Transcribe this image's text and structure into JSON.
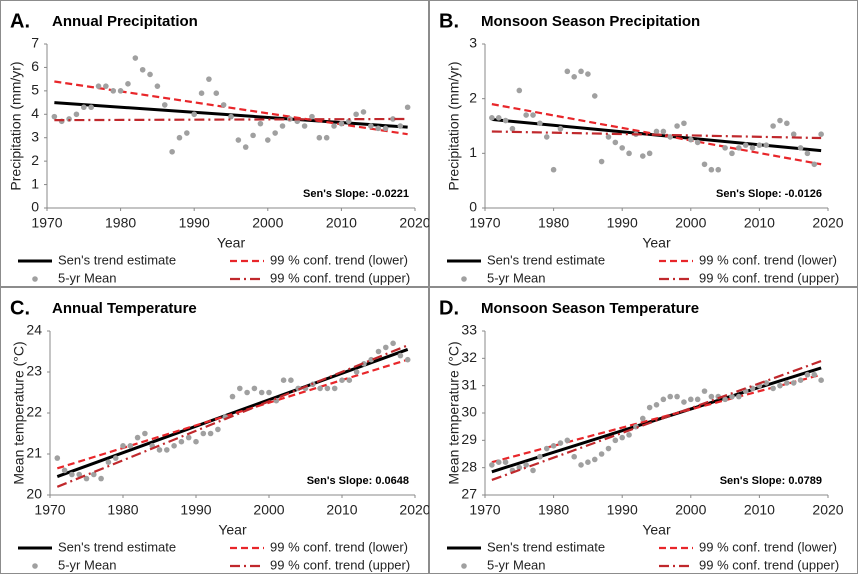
{
  "chart_data": [
    {
      "type": "line",
      "label": "A.",
      "title": "Annual Precipitation",
      "xlabel": "Year",
      "ylabel": "Precipitation (mm/yr)",
      "annotation": "Sen's Slope: -0.0221",
      "xlim": [
        1970,
        2020
      ],
      "xticks": [
        1970,
        1980,
        1990,
        2000,
        2010,
        2020
      ],
      "ylim": [
        0,
        7
      ],
      "yticks": [
        0,
        1,
        2,
        3,
        4,
        5,
        6,
        7
      ],
      "grid": false,
      "series": [
        {
          "name": "Sen's trend estimate",
          "kind": "line",
          "dash": "solid",
          "color": "#000000",
          "x": [
            1971,
            2019
          ],
          "values": [
            4.5,
            3.45
          ]
        },
        {
          "name": "99 % conf. trend (lower)",
          "kind": "line",
          "dash": "dashed",
          "color": "#e8262a",
          "x": [
            1971,
            2019
          ],
          "values": [
            5.4,
            3.15
          ]
        },
        {
          "name": "5-yr Mean",
          "kind": "scatter",
          "color": "#a0a0a0",
          "x": [
            1971,
            1972,
            1973,
            1974,
            1975,
            1976,
            1977,
            1978,
            1979,
            1980,
            1981,
            1982,
            1983,
            1984,
            1985,
            1986,
            1987,
            1988,
            1989,
            1990,
            1991,
            1992,
            1993,
            1994,
            1995,
            1996,
            1997,
            1998,
            1999,
            2000,
            2001,
            2002,
            2003,
            2004,
            2005,
            2006,
            2007,
            2008,
            2009,
            2010,
            2011,
            2012,
            2013,
            2014,
            2015,
            2016,
            2017,
            2018,
            2019
          ],
          "values": [
            3.9,
            3.7,
            3.8,
            4.0,
            4.3,
            4.3,
            5.2,
            5.2,
            5.0,
            5.0,
            5.3,
            6.4,
            5.9,
            5.7,
            5.2,
            4.4,
            2.4,
            3.0,
            3.2,
            4.0,
            4.9,
            5.5,
            4.9,
            4.4,
            3.9,
            2.9,
            2.6,
            3.1,
            3.6,
            2.9,
            3.2,
            3.5,
            3.8,
            3.7,
            3.5,
            3.9,
            3.0,
            3.0,
            3.5,
            3.6,
            3.7,
            4.0,
            4.1,
            3.5,
            3.4,
            3.4,
            3.8,
            3.5,
            4.3
          ]
        },
        {
          "name": "99 % conf. trend (upper)",
          "kind": "line",
          "dash": "dashdot",
          "color": "#c0282c",
          "x": [
            1971,
            2019
          ],
          "values": [
            3.75,
            3.8
          ]
        }
      ]
    },
    {
      "type": "line",
      "label": "B.",
      "title": "Monsoon Season Precipitation",
      "xlabel": "Year",
      "ylabel": "Precipitation (mm/yr)",
      "annotation": "Sen's Slope: -0.0126",
      "xlim": [
        1970,
        2020
      ],
      "xticks": [
        1970,
        1980,
        1990,
        2000,
        2010,
        2020
      ],
      "ylim": [
        0,
        3
      ],
      "yticks": [
        0,
        1,
        2,
        3
      ],
      "grid": false,
      "series": [
        {
          "name": "Sen's trend estimate",
          "kind": "line",
          "dash": "solid",
          "color": "#000000",
          "x": [
            1971,
            2019
          ],
          "values": [
            1.62,
            1.05
          ]
        },
        {
          "name": "99 % conf. trend (lower)",
          "kind": "line",
          "dash": "dashed",
          "color": "#e8262a",
          "x": [
            1971,
            2019
          ],
          "values": [
            1.9,
            0.8
          ]
        },
        {
          "name": "5-yr Mean",
          "kind": "scatter",
          "color": "#a0a0a0",
          "x": [
            1971,
            1972,
            1973,
            1974,
            1975,
            1976,
            1977,
            1978,
            1979,
            1980,
            1981,
            1982,
            1983,
            1984,
            1985,
            1986,
            1987,
            1988,
            1989,
            1990,
            1991,
            1992,
            1993,
            1994,
            1995,
            1996,
            1997,
            1998,
            1999,
            2000,
            2001,
            2002,
            2003,
            2004,
            2005,
            2006,
            2007,
            2008,
            2009,
            2010,
            2011,
            2012,
            2013,
            2014,
            2015,
            2016,
            2017,
            2018,
            2019
          ],
          "values": [
            1.65,
            1.65,
            1.6,
            1.45,
            2.15,
            1.7,
            1.7,
            1.55,
            1.3,
            0.7,
            1.45,
            2.5,
            2.4,
            2.5,
            2.45,
            2.05,
            0.85,
            1.3,
            1.2,
            1.1,
            1.0,
            1.35,
            0.95,
            1.0,
            1.4,
            1.4,
            1.3,
            1.5,
            1.55,
            1.25,
            1.2,
            0.8,
            0.7,
            0.7,
            1.1,
            1.0,
            1.1,
            1.15,
            1.1,
            1.15,
            1.15,
            1.5,
            1.6,
            1.55,
            1.35,
            1.1,
            1.0,
            0.8,
            1.35
          ]
        },
        {
          "name": "99 % conf. trend (upper)",
          "kind": "line",
          "dash": "dashdot",
          "color": "#c0282c",
          "x": [
            1971,
            2019
          ],
          "values": [
            1.4,
            1.28
          ]
        }
      ]
    },
    {
      "type": "line",
      "label": "C.",
      "title": "Annual Temperature",
      "xlabel": "Year",
      "ylabel": "Mean temperature (°C)",
      "annotation": "Sen's Slope: 0.0648",
      "xlim": [
        1970,
        2020
      ],
      "xticks": [
        1970,
        1980,
        1990,
        2000,
        2010,
        2020
      ],
      "ylim": [
        20,
        24
      ],
      "yticks": [
        20,
        21,
        22,
        23,
        24
      ],
      "grid": false,
      "series": [
        {
          "name": "Sen's trend estimate",
          "kind": "line",
          "dash": "solid",
          "color": "#000000",
          "x": [
            1971,
            2019
          ],
          "values": [
            20.45,
            23.55
          ]
        },
        {
          "name": "99 % conf. trend (lower)",
          "kind": "line",
          "dash": "dashed",
          "color": "#e8262a",
          "x": [
            1971,
            2019
          ],
          "values": [
            20.65,
            23.3
          ]
        },
        {
          "name": "5-yr Mean",
          "kind": "scatter",
          "color": "#a0a0a0",
          "x": [
            1971,
            1972,
            1973,
            1974,
            1975,
            1976,
            1977,
            1978,
            1979,
            1980,
            1981,
            1982,
            1983,
            1984,
            1985,
            1986,
            1987,
            1988,
            1989,
            1990,
            1991,
            1992,
            1993,
            1994,
            1995,
            1996,
            1997,
            1998,
            1999,
            2000,
            2001,
            2002,
            2003,
            2004,
            2005,
            2006,
            2007,
            2008,
            2009,
            2010,
            2011,
            2012,
            2013,
            2014,
            2015,
            2016,
            2017,
            2018,
            2019
          ],
          "values": [
            20.9,
            20.6,
            20.5,
            20.5,
            20.4,
            20.5,
            20.4,
            20.8,
            20.9,
            21.2,
            21.2,
            21.4,
            21.5,
            21.2,
            21.1,
            21.1,
            21.2,
            21.3,
            21.4,
            21.3,
            21.5,
            21.5,
            21.6,
            21.9,
            22.4,
            22.6,
            22.5,
            22.6,
            22.5,
            22.5,
            22.3,
            22.8,
            22.8,
            22.6,
            22.6,
            22.7,
            22.6,
            22.6,
            22.6,
            22.8,
            22.8,
            23.0,
            23.2,
            23.3,
            23.5,
            23.6,
            23.7,
            23.4,
            23.3
          ]
        },
        {
          "name": "99 % conf. trend (upper)",
          "kind": "line",
          "dash": "dashdot",
          "color": "#c0282c",
          "x": [
            1971,
            2019
          ],
          "values": [
            20.2,
            23.65
          ]
        }
      ]
    },
    {
      "type": "line",
      "label": "D.",
      "title": "Monsoon  Season Temperature",
      "xlabel": "Year",
      "ylabel": "Mean temperature (°C)",
      "annotation": "Sen's Slope: 0.0789",
      "xlim": [
        1970,
        2020
      ],
      "xticks": [
        1970,
        1980,
        1990,
        2000,
        2010,
        2020
      ],
      "ylim": [
        27,
        33
      ],
      "yticks": [
        27,
        28,
        29,
        30,
        31,
        32,
        33
      ],
      "grid": false,
      "series": [
        {
          "name": "Sen's trend estimate",
          "kind": "line",
          "dash": "solid",
          "color": "#000000",
          "x": [
            1971,
            2019
          ],
          "values": [
            27.85,
            31.65
          ]
        },
        {
          "name": "99 % conf. trend (lower)",
          "kind": "line",
          "dash": "dashed",
          "color": "#e8262a",
          "x": [
            1971,
            2019
          ],
          "values": [
            28.2,
            31.4
          ]
        },
        {
          "name": "5-yr Mean",
          "kind": "scatter",
          "color": "#a0a0a0",
          "x": [
            1971,
            1972,
            1973,
            1974,
            1975,
            1976,
            1977,
            1978,
            1979,
            1980,
            1981,
            1982,
            1983,
            1984,
            1985,
            1986,
            1987,
            1988,
            1989,
            1990,
            1991,
            1992,
            1993,
            1994,
            1995,
            1996,
            1997,
            1998,
            1999,
            2000,
            2001,
            2002,
            2003,
            2004,
            2005,
            2006,
            2007,
            2008,
            2009,
            2010,
            2011,
            2012,
            2013,
            2014,
            2015,
            2016,
            2017,
            2018,
            2019
          ],
          "values": [
            28.1,
            28.2,
            28.2,
            27.9,
            28.0,
            28.1,
            27.9,
            28.4,
            28.7,
            28.8,
            28.9,
            29.0,
            28.4,
            28.1,
            28.2,
            28.3,
            28.5,
            28.7,
            29.0,
            29.1,
            29.2,
            29.5,
            29.8,
            30.2,
            30.3,
            30.5,
            30.6,
            30.6,
            30.4,
            30.5,
            30.5,
            30.8,
            30.6,
            30.6,
            30.5,
            30.6,
            30.6,
            30.8,
            30.9,
            31.0,
            31.1,
            30.9,
            31.0,
            31.1,
            31.1,
            31.2,
            31.4,
            31.4,
            31.2
          ]
        },
        {
          "name": "99 % conf. trend (upper)",
          "kind": "line",
          "dash": "dashdot",
          "color": "#c0282c",
          "x": [
            1971,
            2019
          ],
          "values": [
            27.55,
            31.9
          ]
        }
      ]
    }
  ]
}
